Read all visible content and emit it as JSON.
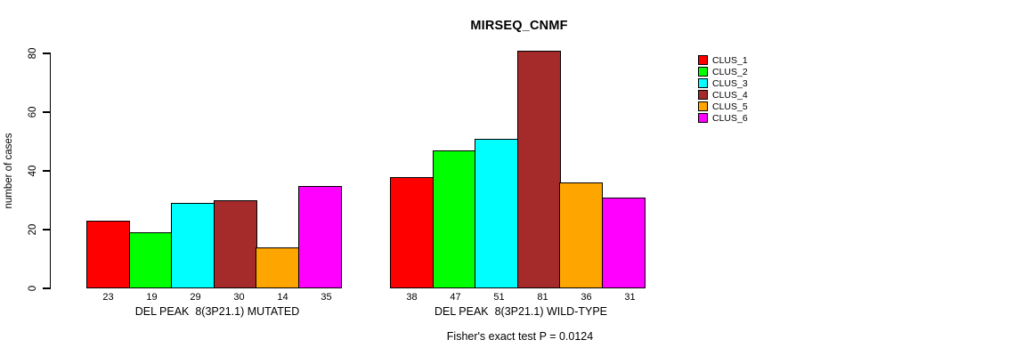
{
  "chart_data": {
    "type": "bar",
    "title": "MIRSEQ_CNMF",
    "ylabel": "number of cases",
    "footer": "Fisher's exact test P = 0.0124",
    "ylim": [
      0,
      80
    ],
    "yticks": [
      0,
      20,
      40,
      60,
      80
    ],
    "grid": false,
    "legend_position": "right-outside",
    "legend": [
      {
        "name": "CLUS_1",
        "color": "#FF0000"
      },
      {
        "name": "CLUS_2",
        "color": "#00FF00"
      },
      {
        "name": "CLUS_3",
        "color": "#00FFFF"
      },
      {
        "name": "CLUS_4",
        "color": "#A52A2A"
      },
      {
        "name": "CLUS_5",
        "color": "#FFA500"
      },
      {
        "name": "CLUS_6",
        "color": "#FF00FF"
      }
    ],
    "groups": [
      {
        "label": "DEL PEAK  8(3P21.1) MUTATED",
        "clusters": [
          "CLUS_1",
          "CLUS_2",
          "CLUS_3",
          "CLUS_4",
          "CLUS_5",
          "CLUS_6"
        ],
        "values": [
          23,
          19,
          29,
          30,
          14,
          35
        ]
      },
      {
        "label": "DEL PEAK  8(3P21.1) WILD-TYPE",
        "clusters": [
          "CLUS_1",
          "CLUS_2",
          "CLUS_3",
          "CLUS_4",
          "CLUS_5",
          "CLUS_6"
        ],
        "values": [
          38,
          47,
          51,
          81,
          36,
          31
        ]
      }
    ]
  }
}
